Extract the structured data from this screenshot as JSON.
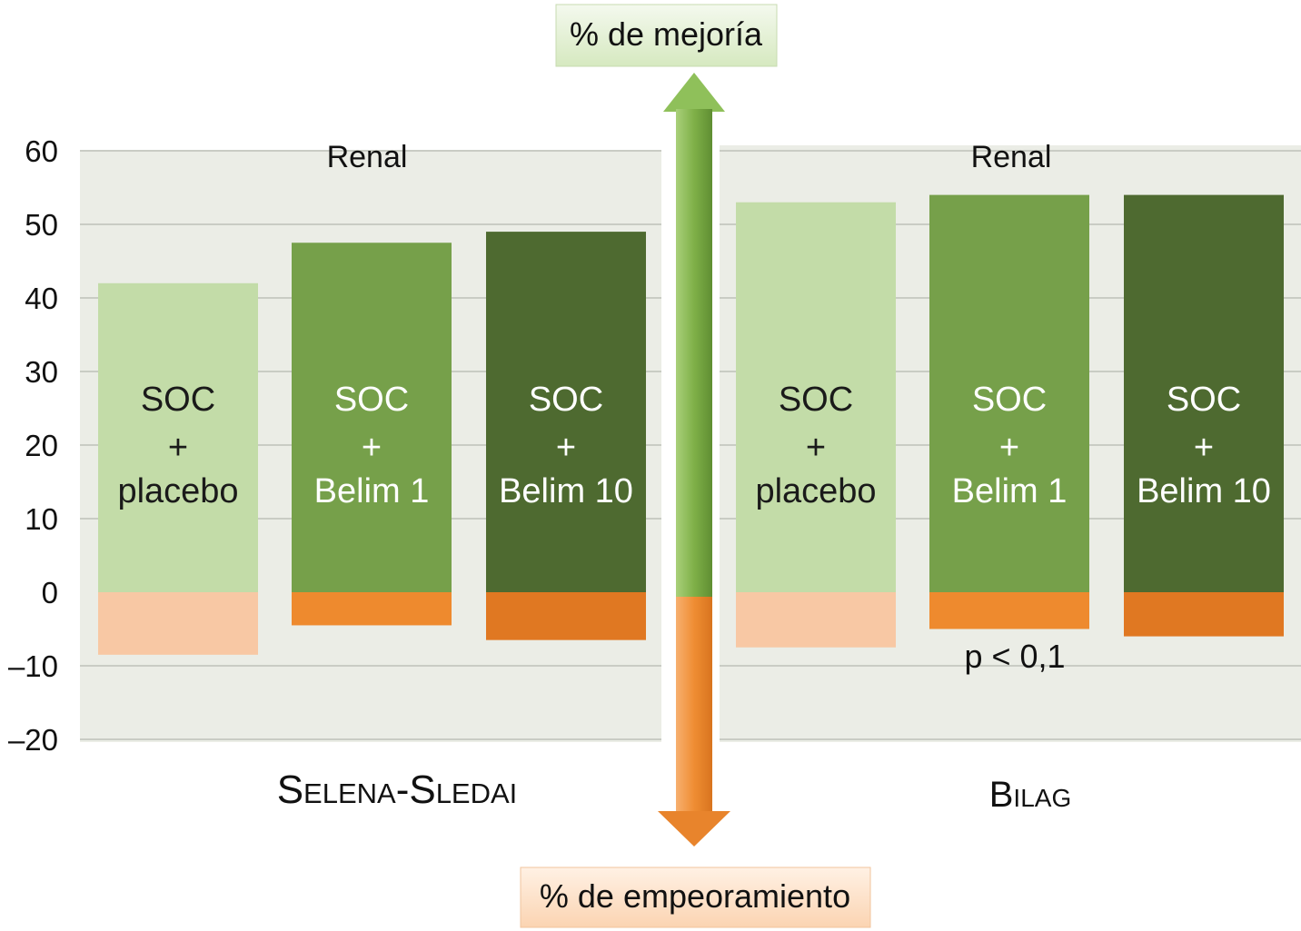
{
  "chart_data": [
    {
      "type": "bar",
      "title": "Renal",
      "xlabel": "Selena-Sledai",
      "ylim": [
        -20,
        60
      ],
      "yticks": [
        60,
        50,
        40,
        30,
        20,
        10,
        0,
        -10,
        -20
      ],
      "ytick_labels": [
        "60",
        "50",
        "40",
        "30",
        "20",
        "10",
        "0",
        "–10",
        "–20"
      ],
      "grid": true,
      "categories": [
        [
          "SOC",
          "+",
          "placebo"
        ],
        [
          "SOC",
          "+",
          "Belim 1"
        ],
        [
          "SOC",
          "+",
          "Belim 10"
        ]
      ],
      "series": [
        {
          "name": "% de mejoría",
          "values": [
            42,
            47.5,
            49
          ]
        },
        {
          "name": "% de empeoramiento",
          "values": [
            -8.5,
            -4.5,
            -6.5
          ]
        }
      ],
      "annotations": []
    },
    {
      "type": "bar",
      "title": "Renal",
      "xlabel": "Bilag",
      "ylim": [
        -20,
        60
      ],
      "grid": true,
      "categories": [
        [
          "SOC",
          "+",
          "placebo"
        ],
        [
          "SOC",
          "+",
          "Belim 1"
        ],
        [
          "SOC",
          "+",
          "Belim 10"
        ]
      ],
      "series": [
        {
          "name": "% de mejoría",
          "values": [
            53,
            54,
            54
          ]
        },
        {
          "name": "% de empeoramiento",
          "values": [
            -7.5,
            -5,
            -6
          ]
        }
      ],
      "annotations": [
        "p < 0,1"
      ]
    }
  ],
  "arrow": {
    "top_label": "% de mejoría",
    "bottom_label": "% de empeoramiento"
  },
  "colors": {
    "panel_bg": "#ebede6",
    "grid": "#c9ccc4",
    "improve": [
      "#c3dca8",
      "#76a04a",
      "#4e6a30"
    ],
    "worsen": [
      "#f8c8a4",
      "#ee8a2e",
      "#e07822"
    ],
    "bar_text": [
      "#1a1a1a",
      "#ffffff",
      "#ffffff"
    ],
    "arrow_green": "#8fc05a",
    "arrow_orange": "#ee8a30",
    "label_top_bg": "#e3f0d5",
    "label_bottom_bg": "#fde3cd"
  }
}
